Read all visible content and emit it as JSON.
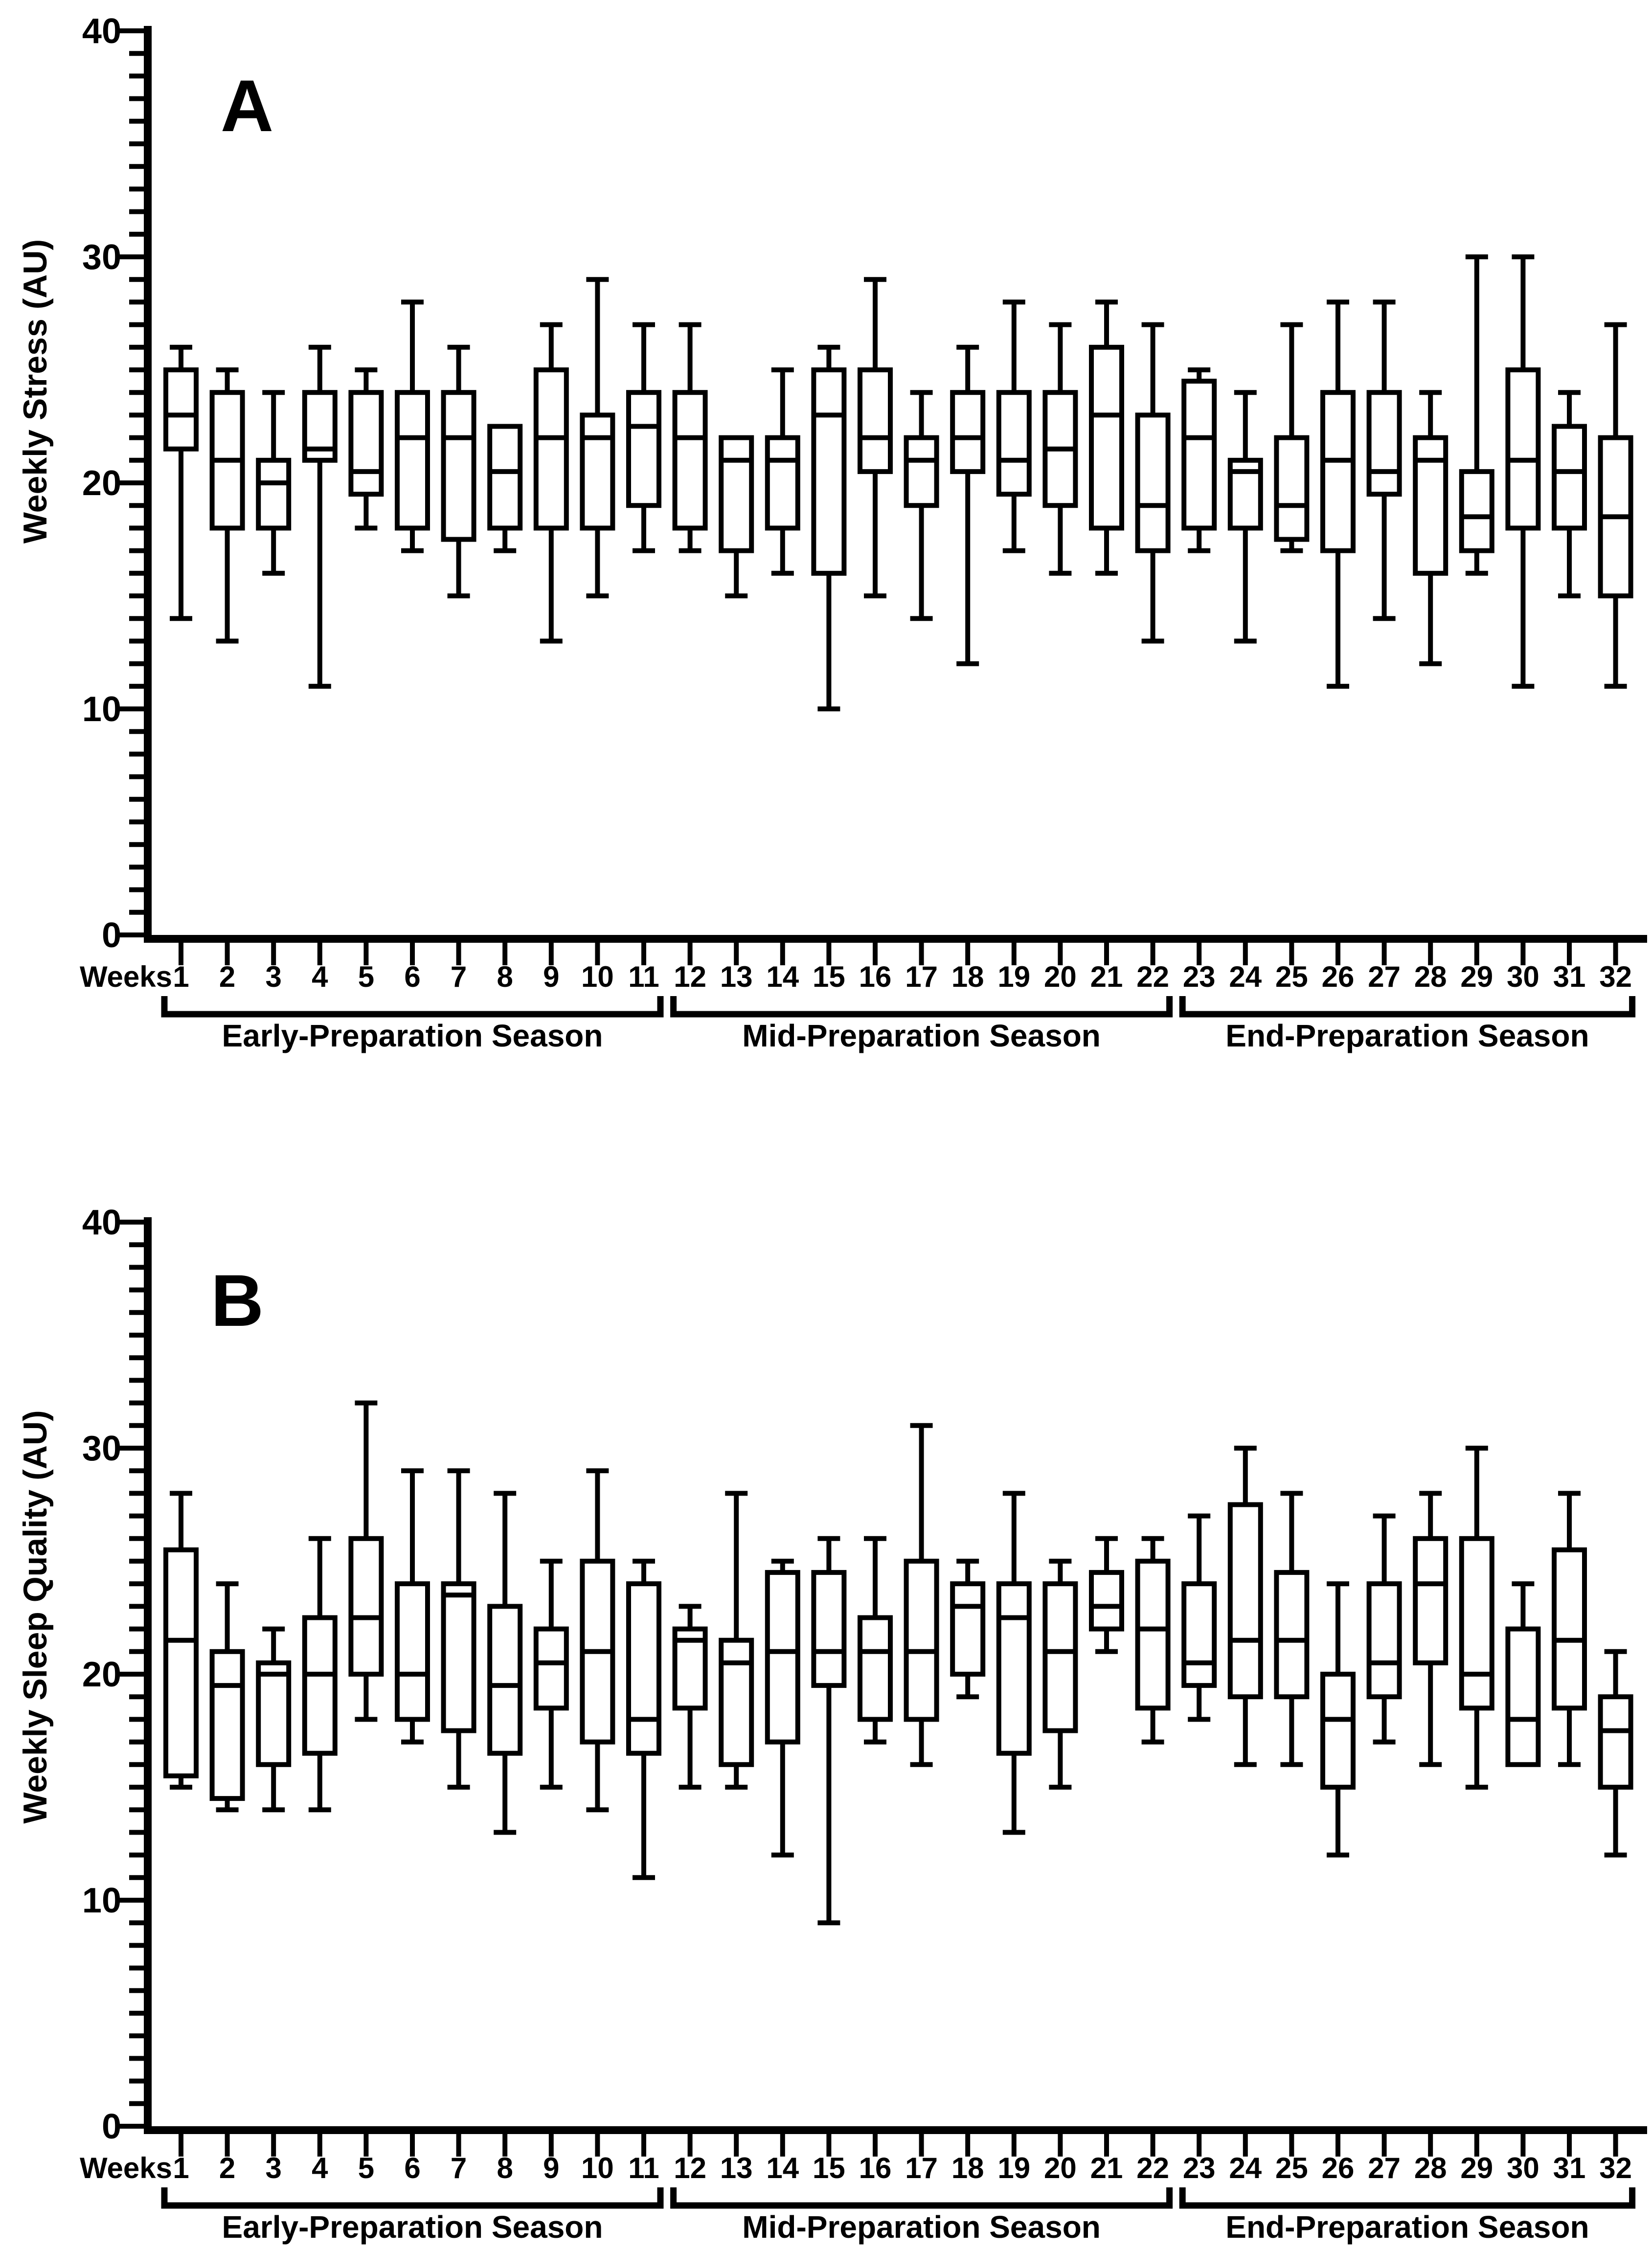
{
  "chart_data": [
    {
      "type": "box",
      "panel_label": "A",
      "ylabel": "Weekly Stress (AU)",
      "xlabel": "Weeks",
      "ylim": [
        0,
        40
      ],
      "ytick_values": [
        0,
        10,
        20,
        30,
        40
      ],
      "major_tick_step": 10,
      "minor_tick_step": 1,
      "grid": false,
      "weeks": [
        1,
        2,
        3,
        4,
        5,
        6,
        7,
        8,
        9,
        10,
        11,
        12,
        13,
        14,
        15,
        16,
        17,
        18,
        19,
        20,
        21,
        22,
        23,
        24,
        25,
        26,
        27,
        28,
        29,
        30,
        31,
        32
      ],
      "season_groups": [
        {
          "label": "Early-Preparation Season",
          "start_week": 1,
          "end_week": 11
        },
        {
          "label": "Mid-Preparation Season",
          "start_week": 12,
          "end_week": 22
        },
        {
          "label": "End-Preparation Season",
          "start_week": 23,
          "end_week": 32
        }
      ],
      "boxes": [
        {
          "week": 1,
          "min": 14,
          "q1": 21.5,
          "median": 23,
          "q3": 25,
          "max": 26
        },
        {
          "week": 2,
          "min": 13,
          "q1": 18,
          "median": 21,
          "q3": 24,
          "max": 25
        },
        {
          "week": 3,
          "min": 16,
          "q1": 18,
          "median": 20,
          "q3": 21,
          "max": 24
        },
        {
          "week": 4,
          "min": 11,
          "q1": 21,
          "median": 21.5,
          "q3": 24,
          "max": 26
        },
        {
          "week": 5,
          "min": 18,
          "q1": 19.5,
          "median": 20.5,
          "q3": 24,
          "max": 25
        },
        {
          "week": 6,
          "min": 17,
          "q1": 18,
          "median": 22,
          "q3": 24,
          "max": 28
        },
        {
          "week": 7,
          "min": 15,
          "q1": 17.5,
          "median": 22,
          "q3": 24,
          "max": 26
        },
        {
          "week": 8,
          "min": 17,
          "q1": 18,
          "median": 20.5,
          "q3": 22.5,
          "max": 22.5
        },
        {
          "week": 9,
          "min": 13,
          "q1": 18,
          "median": 22,
          "q3": 25,
          "max": 27
        },
        {
          "week": 10,
          "min": 15,
          "q1": 18,
          "median": 22,
          "q3": 23,
          "max": 29
        },
        {
          "week": 11,
          "min": 17,
          "q1": 19,
          "median": 22.5,
          "q3": 24,
          "max": 27
        },
        {
          "week": 12,
          "min": 17,
          "q1": 18,
          "median": 22,
          "q3": 24,
          "max": 27
        },
        {
          "week": 13,
          "min": 15,
          "q1": 17,
          "median": 21,
          "q3": 22,
          "max": 22
        },
        {
          "week": 14,
          "min": 16,
          "q1": 18,
          "median": 21,
          "q3": 22,
          "max": 25
        },
        {
          "week": 15,
          "min": 10,
          "q1": 16,
          "median": 23,
          "q3": 25,
          "max": 26
        },
        {
          "week": 16,
          "min": 15,
          "q1": 20.5,
          "median": 22,
          "q3": 25,
          "max": 29
        },
        {
          "week": 17,
          "min": 14,
          "q1": 19,
          "median": 21,
          "q3": 22,
          "max": 24
        },
        {
          "week": 18,
          "min": 12,
          "q1": 20.5,
          "median": 22,
          "q3": 24,
          "max": 26
        },
        {
          "week": 19,
          "min": 17,
          "q1": 19.5,
          "median": 21,
          "q3": 24,
          "max": 28
        },
        {
          "week": 20,
          "min": 16,
          "q1": 19,
          "median": 21.5,
          "q3": 24,
          "max": 27
        },
        {
          "week": 21,
          "min": 16,
          "q1": 18,
          "median": 23,
          "q3": 26,
          "max": 28
        },
        {
          "week": 22,
          "min": 13,
          "q1": 17,
          "median": 19,
          "q3": 23,
          "max": 27
        },
        {
          "week": 23,
          "min": 17,
          "q1": 18,
          "median": 22,
          "q3": 24.5,
          "max": 25
        },
        {
          "week": 24,
          "min": 13,
          "q1": 18,
          "median": 20.5,
          "q3": 21,
          "max": 24
        },
        {
          "week": 25,
          "min": 17,
          "q1": 17.5,
          "median": 19,
          "q3": 22,
          "max": 27
        },
        {
          "week": 26,
          "min": 11,
          "q1": 17,
          "median": 21,
          "q3": 24,
          "max": 28
        },
        {
          "week": 27,
          "min": 14,
          "q1": 19.5,
          "median": 20.5,
          "q3": 24,
          "max": 28
        },
        {
          "week": 28,
          "min": 12,
          "q1": 16,
          "median": 21,
          "q3": 22,
          "max": 24
        },
        {
          "week": 29,
          "min": 16,
          "q1": 17,
          "median": 18.5,
          "q3": 20.5,
          "max": 30
        },
        {
          "week": 30,
          "min": 11,
          "q1": 18,
          "median": 21,
          "q3": 25,
          "max": 30
        },
        {
          "week": 31,
          "min": 15,
          "q1": 18,
          "median": 20.5,
          "q3": 22.5,
          "max": 24
        },
        {
          "week": 32,
          "min": 11,
          "q1": 15,
          "median": 18.5,
          "q3": 22,
          "max": 27
        }
      ]
    },
    {
      "type": "box",
      "panel_label": "B",
      "ylabel": "Weekly Sleep Quality (AU)",
      "xlabel": "Weeks",
      "ylim": [
        0,
        40
      ],
      "ytick_values": [
        0,
        10,
        20,
        30,
        40
      ],
      "major_tick_step": 10,
      "minor_tick_step": 1,
      "grid": false,
      "weeks": [
        1,
        2,
        3,
        4,
        5,
        6,
        7,
        8,
        9,
        10,
        11,
        12,
        13,
        14,
        15,
        16,
        17,
        18,
        19,
        20,
        21,
        22,
        23,
        24,
        25,
        26,
        27,
        28,
        29,
        30,
        31,
        32
      ],
      "season_groups": [
        {
          "label": "Early-Preparation Season",
          "start_week": 1,
          "end_week": 11
        },
        {
          "label": "Mid-Preparation Season",
          "start_week": 12,
          "end_week": 22
        },
        {
          "label": "End-Preparation Season",
          "start_week": 23,
          "end_week": 32
        }
      ],
      "boxes": [
        {
          "week": 1,
          "min": 15,
          "q1": 15.5,
          "median": 21.5,
          "q3": 25.5,
          "max": 28
        },
        {
          "week": 2,
          "min": 14,
          "q1": 14.5,
          "median": 19.5,
          "q3": 21,
          "max": 24
        },
        {
          "week": 3,
          "min": 14,
          "q1": 16,
          "median": 20,
          "q3": 20.5,
          "max": 22
        },
        {
          "week": 4,
          "min": 14,
          "q1": 16.5,
          "median": 20,
          "q3": 22.5,
          "max": 26
        },
        {
          "week": 5,
          "min": 18,
          "q1": 20,
          "median": 22.5,
          "q3": 26,
          "max": 32
        },
        {
          "week": 6,
          "min": 17,
          "q1": 18,
          "median": 20,
          "q3": 24,
          "max": 29
        },
        {
          "week": 7,
          "min": 15,
          "q1": 17.5,
          "median": 23.5,
          "q3": 24,
          "max": 29
        },
        {
          "week": 8,
          "min": 13,
          "q1": 16.5,
          "median": 19.5,
          "q3": 23,
          "max": 28
        },
        {
          "week": 9,
          "min": 15,
          "q1": 18.5,
          "median": 20.5,
          "q3": 22,
          "max": 25
        },
        {
          "week": 10,
          "min": 14,
          "q1": 17,
          "median": 21,
          "q3": 25,
          "max": 29
        },
        {
          "week": 11,
          "min": 11,
          "q1": 16.5,
          "median": 18,
          "q3": 24,
          "max": 25
        },
        {
          "week": 12,
          "min": 15,
          "q1": 18.5,
          "median": 21.5,
          "q3": 22,
          "max": 23
        },
        {
          "week": 13,
          "min": 15,
          "q1": 16,
          "median": 20.5,
          "q3": 21.5,
          "max": 28
        },
        {
          "week": 14,
          "min": 12,
          "q1": 17,
          "median": 21,
          "q3": 24.5,
          "max": 25
        },
        {
          "week": 15,
          "min": 9,
          "q1": 19.5,
          "median": 21,
          "q3": 24.5,
          "max": 26
        },
        {
          "week": 16,
          "min": 17,
          "q1": 18,
          "median": 21,
          "q3": 22.5,
          "max": 26
        },
        {
          "week": 17,
          "min": 16,
          "q1": 18,
          "median": 21,
          "q3": 25,
          "max": 31
        },
        {
          "week": 18,
          "min": 19,
          "q1": 20,
          "median": 23,
          "q3": 24,
          "max": 25
        },
        {
          "week": 19,
          "min": 13,
          "q1": 16.5,
          "median": 22.5,
          "q3": 24,
          "max": 28
        },
        {
          "week": 20,
          "min": 15,
          "q1": 17.5,
          "median": 21,
          "q3": 24,
          "max": 25
        },
        {
          "week": 21,
          "min": 21,
          "q1": 22,
          "median": 23,
          "q3": 24.5,
          "max": 26
        },
        {
          "week": 22,
          "min": 17,
          "q1": 18.5,
          "median": 22,
          "q3": 25,
          "max": 26
        },
        {
          "week": 23,
          "min": 18,
          "q1": 19.5,
          "median": 20.5,
          "q3": 24,
          "max": 27
        },
        {
          "week": 24,
          "min": 16,
          "q1": 19,
          "median": 21.5,
          "q3": 27.5,
          "max": 30
        },
        {
          "week": 25,
          "min": 16,
          "q1": 19,
          "median": 21.5,
          "q3": 24.5,
          "max": 28
        },
        {
          "week": 26,
          "min": 12,
          "q1": 15,
          "median": 18,
          "q3": 20,
          "max": 24
        },
        {
          "week": 27,
          "min": 17,
          "q1": 19,
          "median": 20.5,
          "q3": 24,
          "max": 27
        },
        {
          "week": 28,
          "min": 16,
          "q1": 20.5,
          "median": 24,
          "q3": 26,
          "max": 28
        },
        {
          "week": 29,
          "min": 15,
          "q1": 18.5,
          "median": 20,
          "q3": 26,
          "max": 30
        },
        {
          "week": 30,
          "min": 16,
          "q1": 16,
          "median": 18,
          "q3": 22,
          "max": 24
        },
        {
          "week": 31,
          "min": 16,
          "q1": 18.5,
          "median": 21.5,
          "q3": 25.5,
          "max": 28
        },
        {
          "week": 32,
          "min": 12,
          "q1": 15,
          "median": 17.5,
          "q3": 19,
          "max": 21
        }
      ]
    }
  ]
}
